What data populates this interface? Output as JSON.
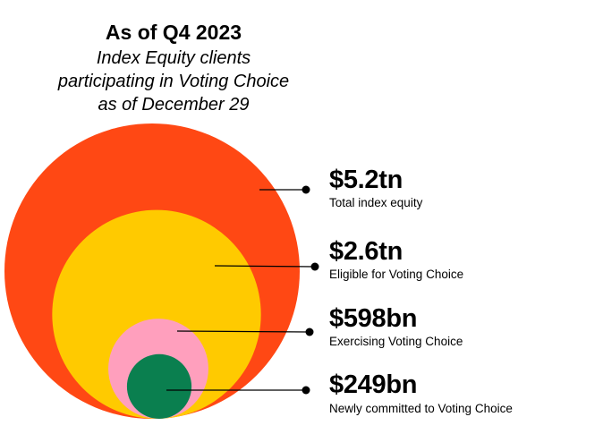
{
  "header": {
    "title": "As of Q4 2023",
    "subtitle_lines": [
      "Index Equity clients",
      "participating in Voting Choice",
      "as of December 29"
    ]
  },
  "chart_data": {
    "type": "nested-bubble",
    "title": "As of Q4 2023",
    "subtitle": "Index Equity clients participating in Voting Choice as of December 29",
    "unit": "USD",
    "series": [
      {
        "label": "$5.2tn",
        "description": "Total index equity",
        "value": 5200,
        "color": "#ff4814"
      },
      {
        "label": "$2.6tn",
        "description": "Eligible for Voting Choice",
        "value": 2600,
        "color": "#ffca00"
      },
      {
        "label": "$598bn",
        "description": "Exercising Voting Choice",
        "value": 598,
        "color": "#ff9fbd"
      },
      {
        "label": "$249bn",
        "description": "Newly committed to Voting Choice",
        "value": 249,
        "color": "#0a7f4f"
      }
    ]
  }
}
